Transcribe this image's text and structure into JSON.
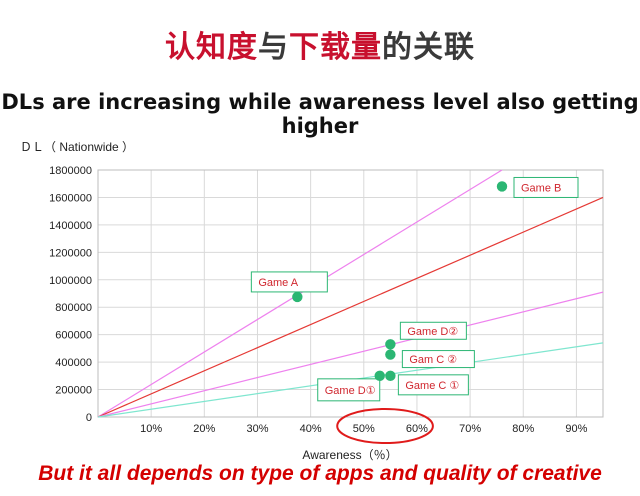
{
  "header": {
    "title_red_1": "认知度",
    "title_dark_1": "与",
    "title_red_2": "下载量",
    "title_dark_2": "的关联",
    "subtitle": "DLs are increasing while awareness level also getting higher"
  },
  "footer": {
    "caption": "But it all depends on type of apps and quality of creative"
  },
  "colors": {
    "title_red": "#c8102e",
    "point": "#2bb673",
    "label_border": "#2bb673",
    "label_text": "#d0262e",
    "highlight_ellipse": "#e01b1b"
  },
  "chart_data": {
    "type": "scatter",
    "ylabel": "ＤＬ（ Nationwide ）",
    "xlabel": "Awareness（％）",
    "xlim": [
      0,
      95
    ],
    "ylim": [
      0,
      1800000
    ],
    "x_ticks": [
      {
        "value": 10,
        "label": "10%"
      },
      {
        "value": 20,
        "label": "20%"
      },
      {
        "value": 30,
        "label": "30%"
      },
      {
        "value": 40,
        "label": "40%"
      },
      {
        "value": 50,
        "label": "50%"
      },
      {
        "value": 60,
        "label": "60%"
      },
      {
        "value": 70,
        "label": "70%"
      },
      {
        "value": 80,
        "label": "80%"
      },
      {
        "value": 90,
        "label": "90%"
      }
    ],
    "y_ticks": [
      {
        "value": 0,
        "label": "0"
      },
      {
        "value": 200000,
        "label": "200000"
      },
      {
        "value": 400000,
        "label": "400000"
      },
      {
        "value": 600000,
        "label": "600000"
      },
      {
        "value": 800000,
        "label": "800000"
      },
      {
        "value": 1000000,
        "label": "1000000"
      },
      {
        "value": 1200000,
        "label": "1200000"
      },
      {
        "value": 1400000,
        "label": "1400000"
      },
      {
        "value": 1600000,
        "label": "1600000"
      },
      {
        "value": 1800000,
        "label": "1800000"
      }
    ],
    "grid": true,
    "points": [
      {
        "x": 37.5,
        "y": 875000
      },
      {
        "x": 76,
        "y": 1680000
      },
      {
        "x": 55,
        "y": 530000
      },
      {
        "x": 55,
        "y": 455000
      },
      {
        "x": 53,
        "y": 300000
      },
      {
        "x": 55,
        "y": 300000
      }
    ],
    "trend_lines": [
      {
        "color": "#ee82ee",
        "x": [
          0,
          76
        ],
        "y": [
          0,
          1800000
        ]
      },
      {
        "color": "#e53935",
        "x": [
          0,
          95
        ],
        "y": [
          0,
          1600000
        ]
      },
      {
        "color": "#ee82ee",
        "x": [
          0,
          95
        ],
        "y": [
          0,
          910000
        ]
      },
      {
        "color": "#7fe6cf",
        "x": [
          0,
          95
        ],
        "y": [
          0,
          540000
        ]
      }
    ],
    "annotations": [
      {
        "text": "Game A",
        "point": 0
      },
      {
        "text": "Game B",
        "point": 1
      },
      {
        "text": "Game D②",
        "point": 2
      },
      {
        "text": "Gam C ②",
        "point": 3
      },
      {
        "text": "Game D①",
        "point": 4
      },
      {
        "text": "Game C ①",
        "point": 5
      }
    ],
    "highlight": {
      "x_range": [
        45,
        63
      ]
    }
  }
}
